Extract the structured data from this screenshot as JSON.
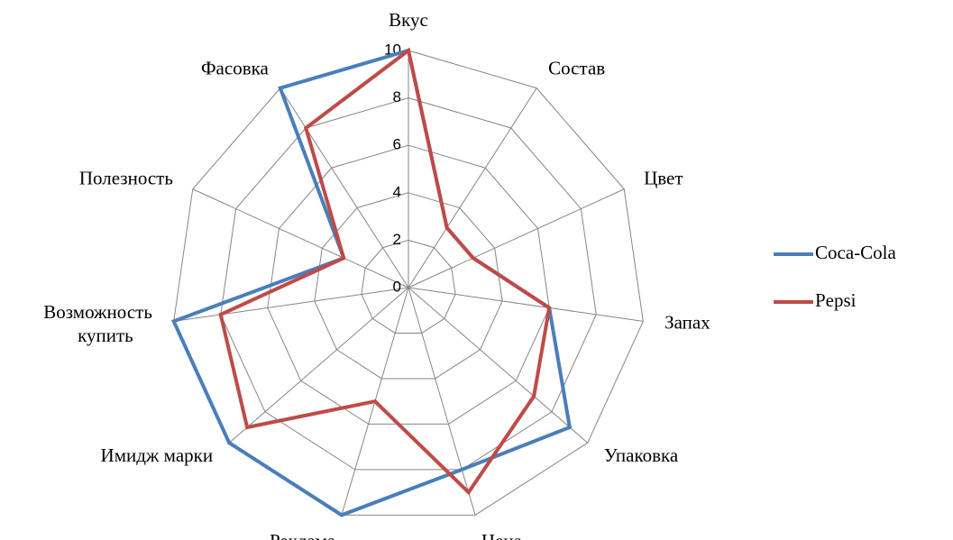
{
  "chart_data": {
    "type": "radar",
    "categories": [
      "Вкус",
      "Состав",
      "Цвет",
      "Запах",
      "Упаковка",
      "Цена",
      "Реклама",
      "Имидж марки",
      "Возможность купить",
      "Полезность",
      "Фасовка"
    ],
    "series": [
      {
        "name": "Coca-Cola",
        "color": "#4a7ebb",
        "values": [
          10,
          3,
          3,
          6,
          9,
          8,
          10,
          10,
          10,
          3,
          10
        ]
      },
      {
        "name": "Pepsi",
        "color": "#be4b48",
        "values": [
          10,
          3,
          3,
          6,
          7,
          9,
          5,
          9,
          8,
          3,
          8
        ]
      }
    ],
    "ylim": [
      0,
      10
    ],
    "yticks": [
      0,
      2,
      4,
      6,
      8,
      10
    ],
    "grid": true,
    "legend": "right"
  }
}
